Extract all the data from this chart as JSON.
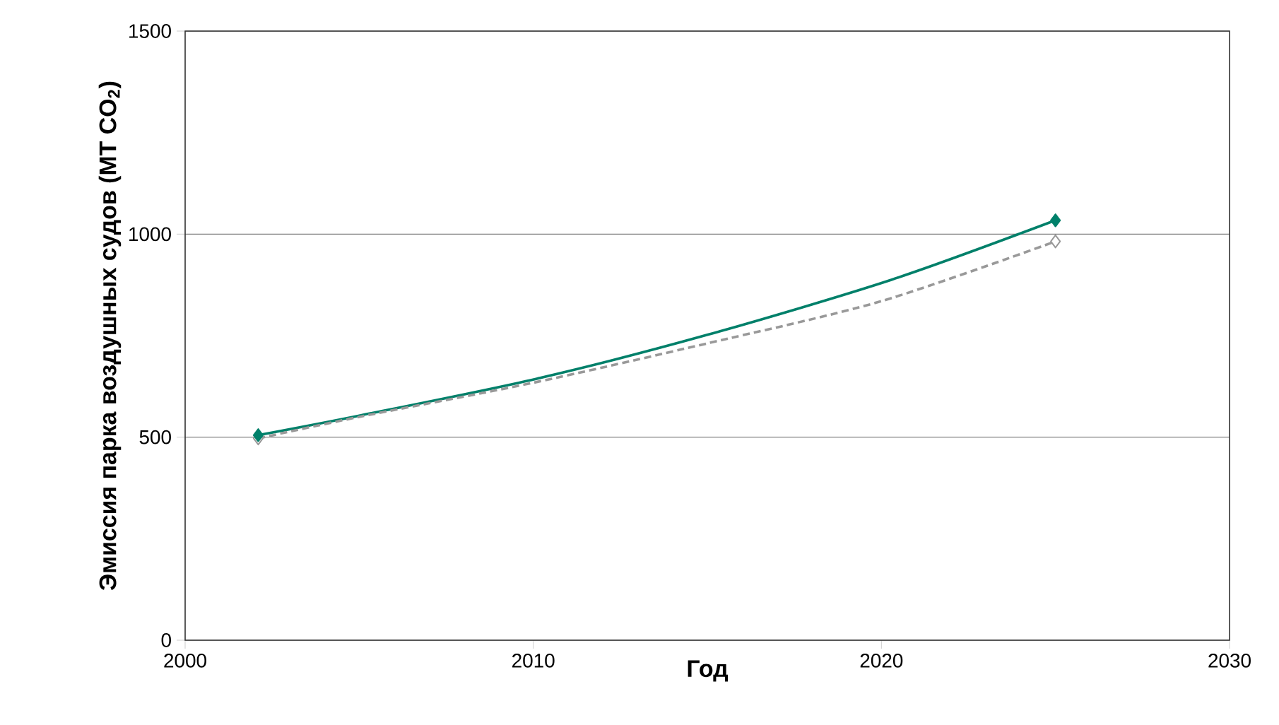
{
  "chart_data": {
    "type": "line",
    "xlabel": "Год",
    "ylabel": "Эмиссия парка воздушных судов (МТ CO$_{2}$)",
    "xlim": [
      2000,
      2030
    ],
    "xticks": [
      2000,
      2010,
      2020,
      2030
    ],
    "ylim": [
      0,
      1500
    ],
    "yticks": [
      0,
      500,
      1000,
      1500
    ],
    "grid": "y",
    "series": [
      {
        "color": "#00806a",
        "line_style": "solid",
        "marker": "none",
        "x": [
          2002.1,
          2005,
          2010.1,
          2015,
          2020.3,
          2025
        ],
        "values": [
          505,
          553,
          644,
          752,
          888,
          1034
        ]
      },
      {
        "color": "#999999",
        "line_style": "dashed",
        "marker": "none",
        "x": [
          2002.1,
          2005,
          2010,
          2015,
          2020,
          2025
        ],
        "values": [
          497,
          550,
          634,
          731,
          835,
          982
        ]
      },
      {
        "type": "scatter",
        "color": "#999999",
        "marker": "diamond",
        "x": [
          2002.1,
          2025
        ],
        "values": [
          497,
          982
        ]
      },
      {
        "type": "scatter",
        "color": "#00806a",
        "marker": "diamond",
        "x": [
          2002.1,
          2025
        ],
        "values": [
          505,
          1034
        ]
      }
    ]
  }
}
